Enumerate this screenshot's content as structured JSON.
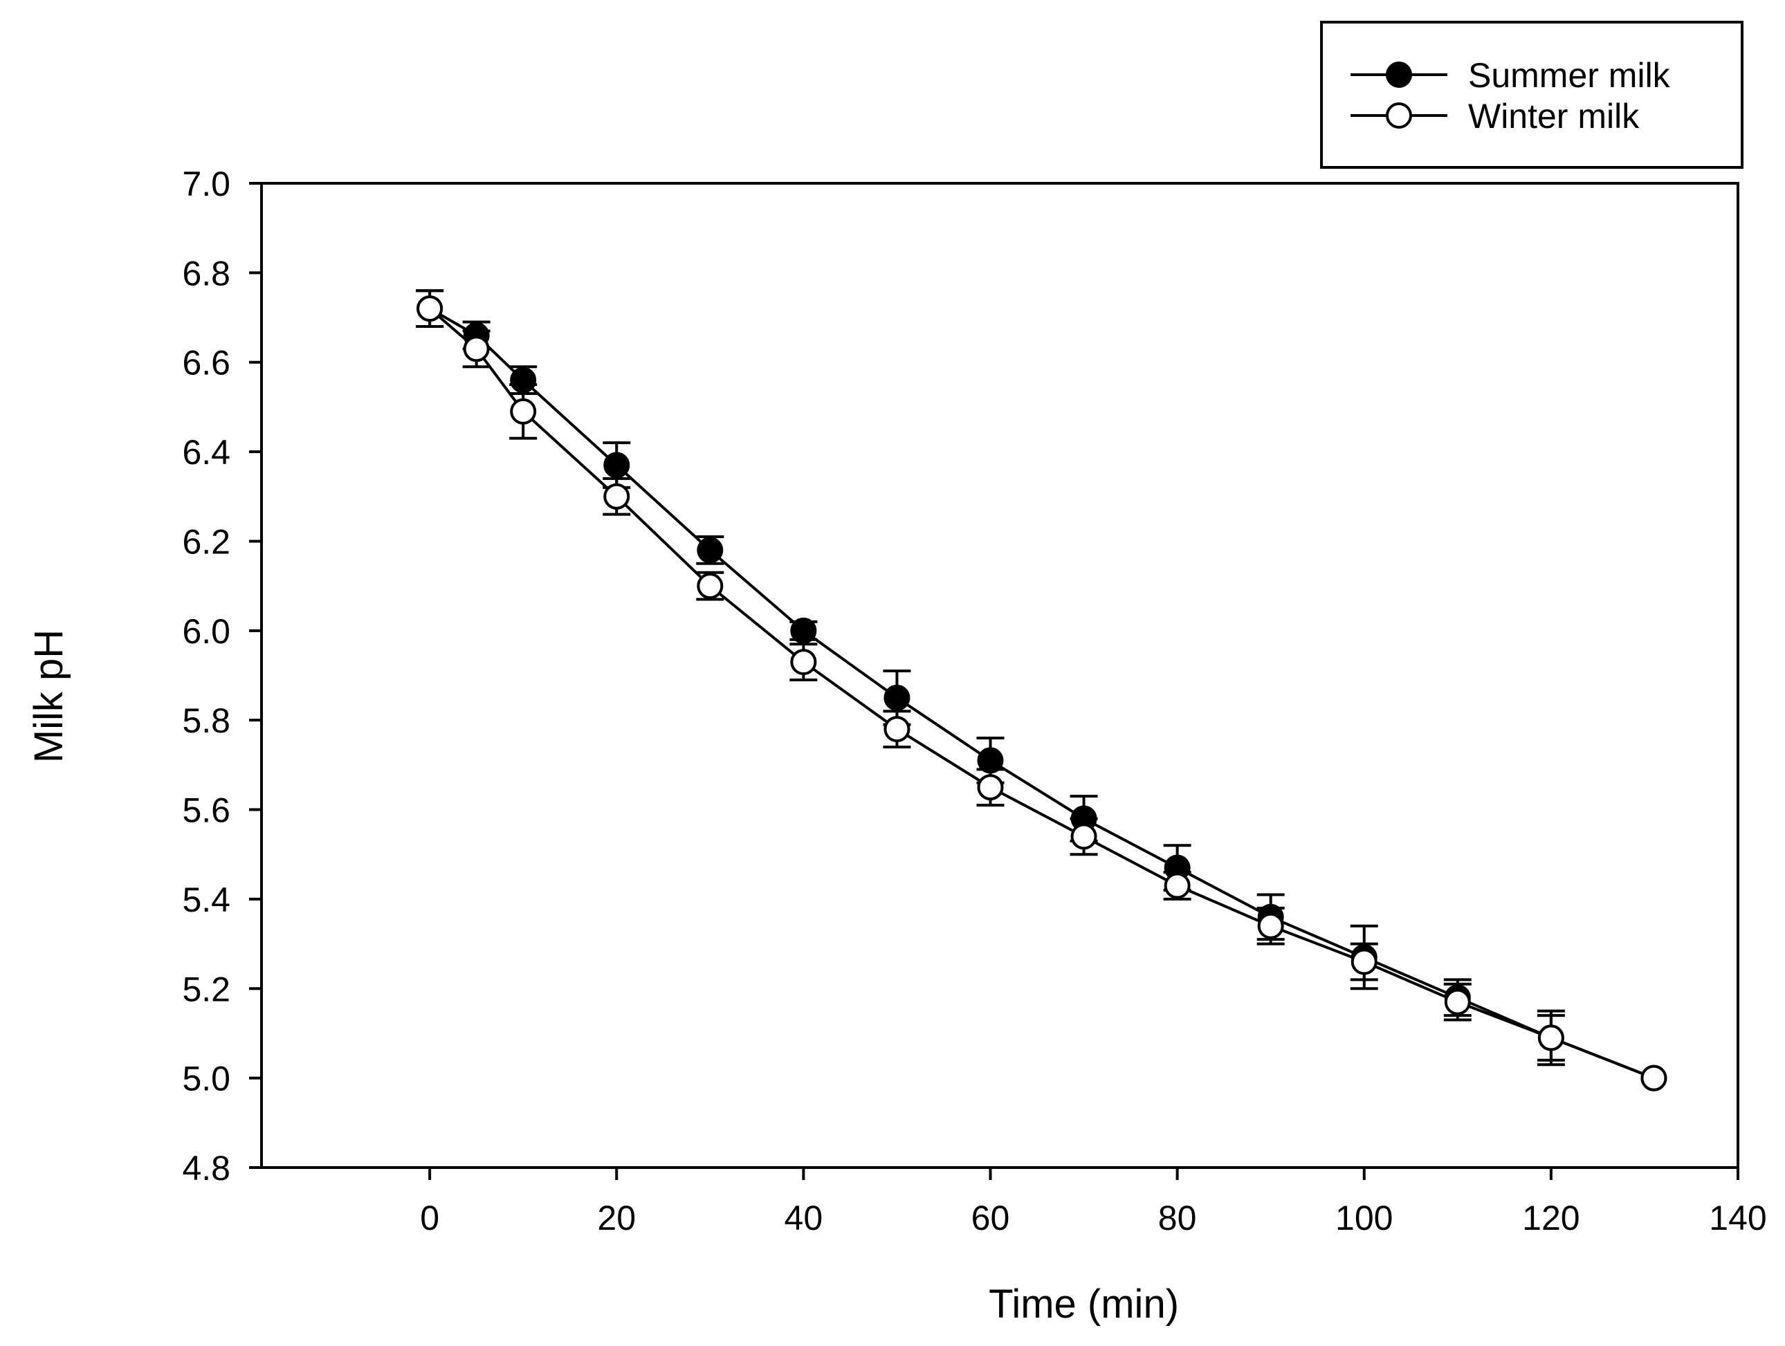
{
  "chart_data": {
    "type": "line",
    "title": "",
    "xlabel": "Time (min)",
    "ylabel": "Milk pH",
    "xlim": [
      -18,
      140
    ],
    "ylim": [
      4.8,
      7.0
    ],
    "xticks": [
      0,
      20,
      40,
      60,
      80,
      100,
      120,
      140
    ],
    "xtick_labels": [
      "0",
      "20",
      "40",
      "60",
      "80",
      "100",
      "120",
      "140"
    ],
    "yticks": [
      4.8,
      5.0,
      5.2,
      5.4,
      5.6,
      5.8,
      6.0,
      6.2,
      6.4,
      6.6,
      6.8,
      7.0
    ],
    "ytick_labels": [
      "4.8",
      "5.0",
      "5.2",
      "5.4",
      "5.6",
      "5.8",
      "6.0",
      "6.2",
      "6.4",
      "6.6",
      "6.8",
      "7.0"
    ],
    "grid": false,
    "legend_position": "top-right",
    "series": [
      {
        "name": "Summer milk",
        "marker": "filled-circle",
        "color": "#000000",
        "x": [
          0,
          5,
          10,
          20,
          30,
          40,
          50,
          60,
          70,
          80,
          90,
          100,
          110,
          120,
          131
        ],
        "y": [
          6.72,
          6.66,
          6.56,
          6.37,
          6.18,
          6.0,
          5.85,
          5.71,
          5.58,
          5.47,
          5.36,
          5.27,
          5.18,
          5.09,
          5.0
        ],
        "error": [
          0.04,
          0.03,
          0.03,
          0.05,
          0.03,
          0.02,
          0.06,
          0.05,
          0.05,
          0.05,
          0.05,
          0.07,
          0.04,
          0.06,
          0.0
        ]
      },
      {
        "name": "Winter milk",
        "marker": "open-circle",
        "color": "#000000",
        "x": [
          0,
          5,
          10,
          20,
          30,
          40,
          50,
          60,
          70,
          80,
          90,
          100,
          110,
          120,
          131
        ],
        "y": [
          6.72,
          6.63,
          6.49,
          6.3,
          6.1,
          5.93,
          5.78,
          5.65,
          5.54,
          5.43,
          5.34,
          5.26,
          5.17,
          5.09,
          5.0
        ],
        "error": [
          0.04,
          0.04,
          0.06,
          0.04,
          0.03,
          0.04,
          0.04,
          0.04,
          0.04,
          0.03,
          0.04,
          0.04,
          0.04,
          0.05,
          0.0
        ]
      }
    ]
  }
}
